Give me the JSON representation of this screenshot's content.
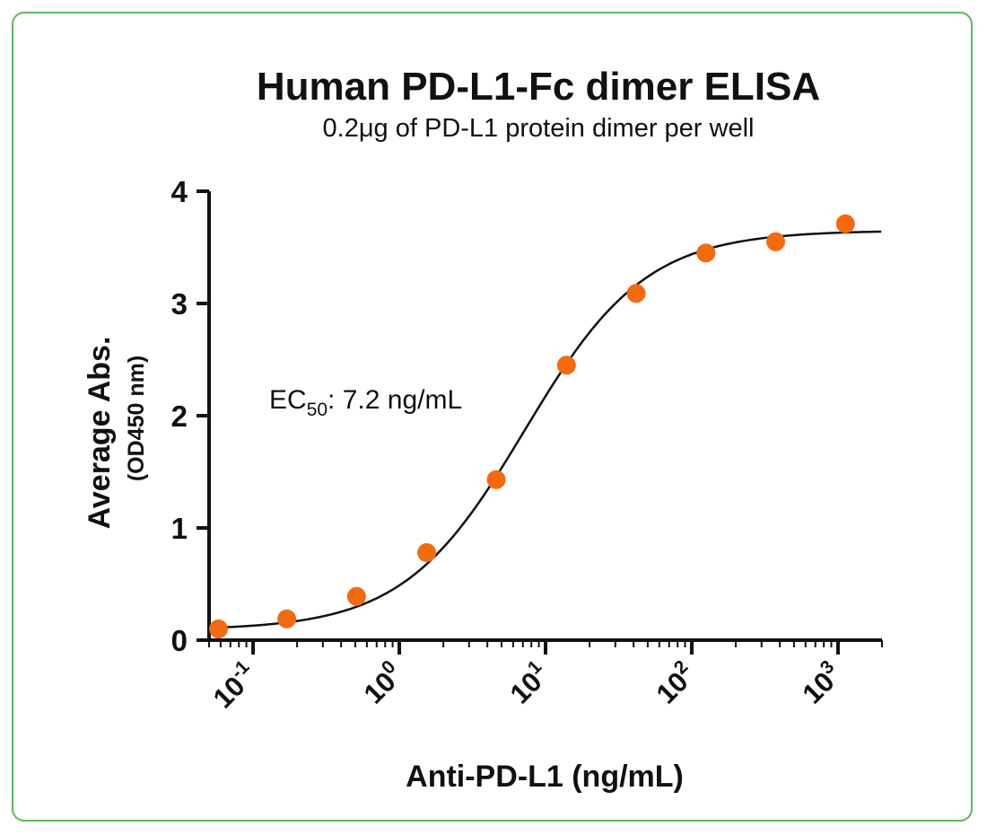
{
  "chart_data": {
    "type": "scatter",
    "title": "Human PD-L1-Fc dimer ELISA",
    "subtitle": "0.2μg of PD-L1 protein dimer per well",
    "xlabel": "Anti-PD-L1 (ng/mL)",
    "ylabel": "Average Abs.",
    "ylabel2": "(OD450 nm)",
    "x_scale": "log",
    "x_ticks": [
      {
        "base": "10",
        "exp": "-1",
        "value": 0.1
      },
      {
        "base": "10",
        "exp": "0",
        "value": 1
      },
      {
        "base": "10",
        "exp": "1",
        "value": 10
      },
      {
        "base": "10",
        "exp": "2",
        "value": 100
      },
      {
        "base": "10",
        "exp": "3",
        "value": 1000
      }
    ],
    "xlim": [
      0.05,
      2000
    ],
    "ylim": [
      0,
      4
    ],
    "y_ticks": [
      "0",
      "1",
      "2",
      "3",
      "4"
    ],
    "series": [
      {
        "x": [
          0.058,
          0.17,
          0.51,
          1.54,
          4.6,
          13.9,
          41.7,
          125,
          375,
          1125
        ],
        "y": [
          0.1,
          0.19,
          0.39,
          0.78,
          1.43,
          2.45,
          3.09,
          3.45,
          3.55,
          3.71
        ],
        "color": "#f26b0f"
      }
    ],
    "fit_curve": {
      "bottom": 0.09,
      "top": 3.65,
      "ec50": 7.2,
      "hill": 1.05,
      "color": "#111111"
    },
    "annotation": {
      "prefix": "EC",
      "sub": "50",
      "suffix": ": 7.2 ng/mL"
    },
    "grid": false,
    "legend": "none"
  },
  "frame_color": "#5cb85c"
}
